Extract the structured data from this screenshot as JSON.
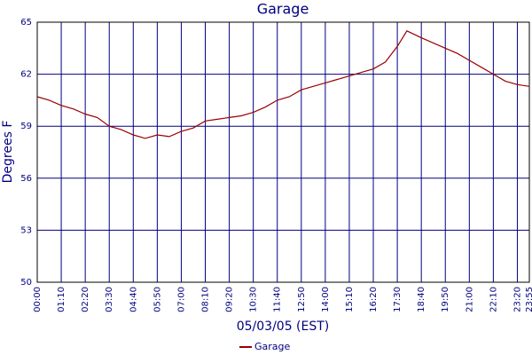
{
  "chart_data": {
    "type": "line",
    "title": "Garage",
    "x_label": "05/03/05 (EST)",
    "y_label": "Degrees F",
    "xlim": [
      0,
      1435
    ],
    "ylim": [
      50,
      65
    ],
    "xticks": [
      {
        "value": 0,
        "label": "00:00"
      },
      {
        "value": 70,
        "label": "01:10"
      },
      {
        "value": 140,
        "label": "02:20"
      },
      {
        "value": 210,
        "label": "03:30"
      },
      {
        "value": 280,
        "label": "04:40"
      },
      {
        "value": 350,
        "label": "05:50"
      },
      {
        "value": 420,
        "label": "07:00"
      },
      {
        "value": 490,
        "label": "08:10"
      },
      {
        "value": 560,
        "label": "09:20"
      },
      {
        "value": 630,
        "label": "10:30"
      },
      {
        "value": 700,
        "label": "11:40"
      },
      {
        "value": 770,
        "label": "12:50"
      },
      {
        "value": 840,
        "label": "14:00"
      },
      {
        "value": 910,
        "label": "15:10"
      },
      {
        "value": 980,
        "label": "16:20"
      },
      {
        "value": 1050,
        "label": "17:30"
      },
      {
        "value": 1120,
        "label": "18:40"
      },
      {
        "value": 1190,
        "label": "19:50"
      },
      {
        "value": 1260,
        "label": "21:00"
      },
      {
        "value": 1330,
        "label": "22:10"
      },
      {
        "value": 1400,
        "label": "23:20"
      },
      {
        "value": 1435,
        "label": "23:55"
      }
    ],
    "yticks": [
      50,
      53,
      56,
      59,
      62,
      65
    ],
    "grid": true,
    "x": [
      0,
      35,
      70,
      105,
      140,
      175,
      210,
      245,
      280,
      315,
      350,
      385,
      420,
      455,
      490,
      525,
      560,
      595,
      630,
      665,
      700,
      735,
      770,
      805,
      840,
      875,
      910,
      945,
      980,
      1015,
      1050,
      1078,
      1120,
      1155,
      1190,
      1225,
      1260,
      1295,
      1330,
      1365,
      1400,
      1435
    ],
    "series": [
      {
        "name": "Garage",
        "color": "#990000",
        "values": [
          60.7,
          60.5,
          60.2,
          60.0,
          59.7,
          59.5,
          59.0,
          58.8,
          58.5,
          58.3,
          58.5,
          58.4,
          58.7,
          58.9,
          59.3,
          59.4,
          59.5,
          59.6,
          59.8,
          60.1,
          60.5,
          60.7,
          61.1,
          61.3,
          61.5,
          61.7,
          61.9,
          62.1,
          62.3,
          62.7,
          63.6,
          64.5,
          64.1,
          63.8,
          63.5,
          63.2,
          62.8,
          62.4,
          62.0,
          61.6,
          61.4,
          61.3
        ]
      }
    ]
  }
}
